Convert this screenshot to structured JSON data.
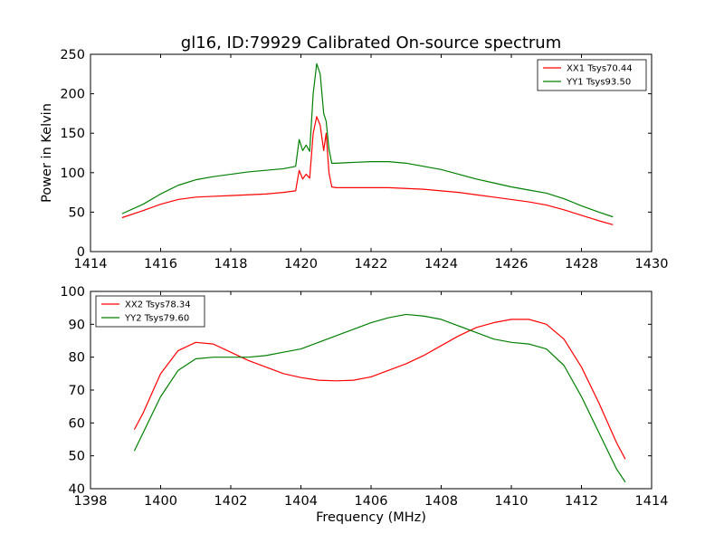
{
  "figure": {
    "title": "gl16, ID:79929 Calibrated On-source spectrum"
  },
  "chart_data": [
    {
      "type": "line",
      "xlim": [
        1414,
        1430
      ],
      "ylim": [
        0,
        250
      ],
      "xticks": [
        1414,
        1416,
        1418,
        1420,
        1422,
        1424,
        1426,
        1428,
        1430
      ],
      "yticks": [
        0,
        50,
        100,
        150,
        200,
        250
      ],
      "xlabel": "",
      "ylabel": "Power in Kelvin",
      "grid": false,
      "legend_position": "top-right",
      "series": [
        {
          "name": "XX1 Tsys70.44",
          "color": "#ff0000",
          "x": [
            1414.9,
            1415.5,
            1416.0,
            1416.5,
            1417.0,
            1417.5,
            1418.0,
            1418.5,
            1419.0,
            1419.5,
            1419.85,
            1419.95,
            1420.05,
            1420.15,
            1420.25,
            1420.35,
            1420.45,
            1420.55,
            1420.65,
            1420.72,
            1420.8,
            1420.88,
            1421.0,
            1421.5,
            1422.0,
            1422.5,
            1423.0,
            1423.5,
            1424.0,
            1424.5,
            1425.0,
            1425.5,
            1426.0,
            1426.5,
            1427.0,
            1427.5,
            1428.0,
            1428.5,
            1428.9
          ],
          "values": [
            43,
            52,
            60,
            66,
            69,
            70,
            71,
            72,
            73,
            75,
            77,
            103,
            92,
            98,
            93,
            150,
            171,
            160,
            128,
            150,
            100,
            82,
            81,
            81,
            81,
            81,
            80,
            79,
            77,
            75,
            72,
            69,
            66,
            63,
            59,
            53,
            46,
            39,
            34
          ]
        },
        {
          "name": "YY1 Tsys93.50",
          "color": "#008000",
          "x": [
            1414.9,
            1415.5,
            1416.0,
            1416.5,
            1417.0,
            1417.5,
            1418.0,
            1418.5,
            1419.0,
            1419.5,
            1419.85,
            1419.95,
            1420.05,
            1420.15,
            1420.25,
            1420.35,
            1420.45,
            1420.55,
            1420.65,
            1420.72,
            1420.8,
            1420.88,
            1421.0,
            1421.5,
            1422.0,
            1422.5,
            1423.0,
            1423.5,
            1424.0,
            1424.5,
            1425.0,
            1425.5,
            1426.0,
            1426.5,
            1427.0,
            1427.5,
            1428.0,
            1428.5,
            1428.9
          ],
          "values": [
            48,
            60,
            73,
            84,
            91,
            95,
            98,
            101,
            103,
            105,
            108,
            142,
            128,
            135,
            127,
            200,
            238,
            225,
            175,
            165,
            130,
            112,
            112,
            113,
            114,
            114,
            112,
            108,
            104,
            98,
            92,
            87,
            82,
            78,
            74,
            67,
            58,
            50,
            44
          ]
        }
      ]
    },
    {
      "type": "line",
      "xlim": [
        1398,
        1414
      ],
      "ylim": [
        40,
        100
      ],
      "xticks": [
        1398,
        1400,
        1402,
        1404,
        1406,
        1408,
        1410,
        1412,
        1414
      ],
      "yticks": [
        40,
        50,
        60,
        70,
        80,
        90,
        100
      ],
      "xlabel": "Frequency (MHz)",
      "ylabel": "",
      "grid": false,
      "legend_position": "top-left",
      "series": [
        {
          "name": "XX2 Tsys78.34",
          "color": "#ff0000",
          "x": [
            1399.25,
            1399.5,
            1400.0,
            1400.5,
            1401.0,
            1401.5,
            1402.0,
            1402.5,
            1403.0,
            1403.5,
            1404.0,
            1404.5,
            1405.0,
            1405.5,
            1406.0,
            1406.5,
            1407.0,
            1407.5,
            1408.0,
            1408.5,
            1409.0,
            1409.5,
            1410.0,
            1410.5,
            1411.0,
            1411.5,
            1412.0,
            1412.5,
            1413.0,
            1413.25
          ],
          "values": [
            58,
            63,
            75,
            82,
            84.5,
            84,
            81.5,
            79,
            77,
            75,
            73.8,
            73,
            72.8,
            73,
            74,
            76,
            78,
            80.5,
            83.5,
            86.5,
            89,
            90.5,
            91.5,
            91.5,
            90,
            85.5,
            77,
            66,
            54,
            49
          ]
        },
        {
          "name": "YY2 Tsys79.60",
          "color": "#008000",
          "x": [
            1399.25,
            1399.5,
            1400.0,
            1400.5,
            1401.0,
            1401.5,
            1402.0,
            1402.5,
            1403.0,
            1403.5,
            1404.0,
            1404.5,
            1405.0,
            1405.5,
            1406.0,
            1406.5,
            1407.0,
            1407.5,
            1408.0,
            1408.5,
            1409.0,
            1409.5,
            1410.0,
            1410.5,
            1411.0,
            1411.5,
            1412.0,
            1412.5,
            1413.0,
            1413.25
          ],
          "values": [
            51.5,
            57,
            68,
            76,
            79.5,
            80,
            80,
            80,
            80.5,
            81.5,
            82.5,
            84.5,
            86.5,
            88.5,
            90.5,
            92,
            93,
            92.5,
            91.5,
            89.5,
            87.5,
            85.5,
            84.5,
            84,
            82.5,
            77.5,
            68,
            57,
            46,
            42
          ]
        }
      ]
    }
  ]
}
